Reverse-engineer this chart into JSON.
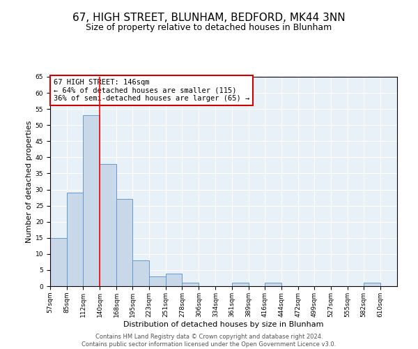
{
  "title": "67, HIGH STREET, BLUNHAM, BEDFORD, MK44 3NN",
  "subtitle": "Size of property relative to detached houses in Blunham",
  "xlabel": "Distribution of detached houses by size in Blunham",
  "ylabel": "Number of detached properties",
  "bin_labels": [
    "57sqm",
    "85sqm",
    "112sqm",
    "140sqm",
    "168sqm",
    "195sqm",
    "223sqm",
    "251sqm",
    "278sqm",
    "306sqm",
    "334sqm",
    "361sqm",
    "389sqm",
    "416sqm",
    "444sqm",
    "472sqm",
    "499sqm",
    "527sqm",
    "555sqm",
    "582sqm",
    "610sqm"
  ],
  "bin_edges": [
    57,
    85,
    112,
    140,
    168,
    195,
    223,
    251,
    278,
    306,
    334,
    361,
    389,
    416,
    444,
    472,
    499,
    527,
    555,
    582,
    610,
    638
  ],
  "bar_heights": [
    15,
    29,
    53,
    38,
    27,
    8,
    3,
    4,
    1,
    0,
    0,
    1,
    0,
    1,
    0,
    0,
    0,
    0,
    0,
    1,
    0
  ],
  "bar_color": "#c8d8e8",
  "bar_edge_color": "#6699cc",
  "red_line_x": 140,
  "annotation_title": "67 HIGH STREET: 146sqm",
  "annotation_line1": "← 64% of detached houses are smaller (115)",
  "annotation_line2": "36% of semi-detached houses are larger (65) →",
  "annotation_box_color": "#ffffff",
  "annotation_box_edge": "#cc0000",
  "ylim": [
    0,
    65
  ],
  "yticks": [
    0,
    5,
    10,
    15,
    20,
    25,
    30,
    35,
    40,
    45,
    50,
    55,
    60,
    65
  ],
  "footer_line1": "Contains HM Land Registry data © Crown copyright and database right 2024.",
  "footer_line2": "Contains public sector information licensed under the Open Government Licence v3.0.",
  "title_fontsize": 11,
  "subtitle_fontsize": 9,
  "axis_label_fontsize": 8,
  "tick_fontsize": 6.5,
  "annotation_fontsize": 7.5,
  "footer_fontsize": 6
}
